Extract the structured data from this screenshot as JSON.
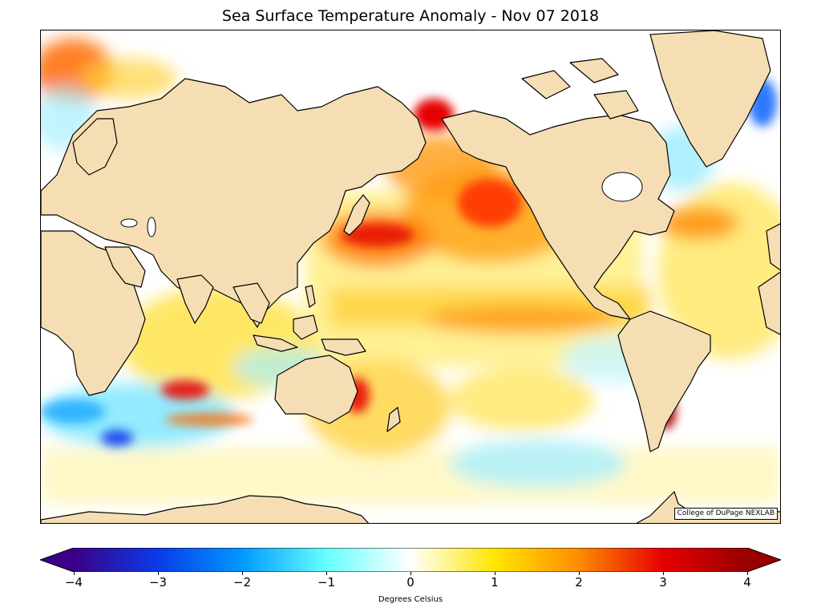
{
  "map": {
    "title": "Sea Surface Temperature Anomaly - Nov 07 2018",
    "credit": "College of DuPage NEXLAB",
    "projection": "equirectangular, centered on the Pacific",
    "land_color": "#f5deb3",
    "ocean_color": "#ffffff",
    "coastline_color": "#000000"
  },
  "colorbar": {
    "label": "Degrees Celsius",
    "min": -4,
    "max": 4,
    "ticks": [
      {
        "value": -4,
        "label": "−4"
      },
      {
        "value": -3,
        "label": "−3"
      },
      {
        "value": -2,
        "label": "−2"
      },
      {
        "value": -1,
        "label": "−1"
      },
      {
        "value": 0,
        "label": "0"
      },
      {
        "value": 1,
        "label": "1"
      },
      {
        "value": 2,
        "label": "2"
      },
      {
        "value": 3,
        "label": "3"
      },
      {
        "value": 4,
        "label": "4"
      }
    ],
    "stops": [
      {
        "value": -4,
        "color": "#3a0088"
      },
      {
        "value": -3,
        "color": "#0b3be8"
      },
      {
        "value": -2,
        "color": "#0099ff"
      },
      {
        "value": -1,
        "color": "#66ffff"
      },
      {
        "value": 0,
        "color": "#ffffff"
      },
      {
        "value": 1,
        "color": "#ffe600"
      },
      {
        "value": 2,
        "color": "#ff8c00"
      },
      {
        "value": 3,
        "color": "#e60000"
      },
      {
        "value": 4,
        "color": "#990000"
      }
    ],
    "extend": "both"
  }
}
